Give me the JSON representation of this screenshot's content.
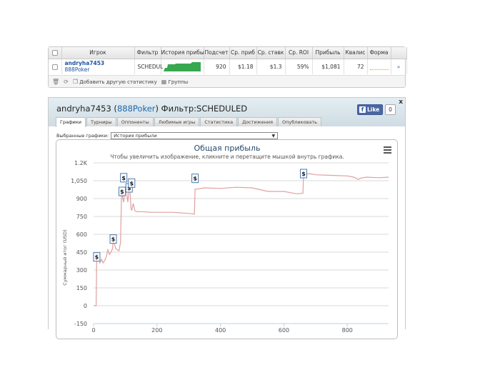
{
  "stats": {
    "headers": [
      "Игрок",
      "Фильтр",
      "История прибы",
      "Подсчет",
      "Ср. приб",
      "Ср. ставк",
      "Ср. ROI",
      "Прибыль",
      "Квалис",
      "Форма"
    ],
    "row": {
      "player": "andryha7453",
      "site": "888Poker",
      "filter": "SCHEDUL",
      "count": "920",
      "avg_profit": "$1.18",
      "avg_stake": "$1.3",
      "avg_roi": "59%",
      "profit": "$1,081",
      "qualis": "72",
      "link": "»"
    },
    "footer": {
      "add_stats": "Добавить другую статистику",
      "groups": "Группы"
    }
  },
  "panel": {
    "player": "andryha7453",
    "site": "888Poker",
    "filter_label": "Фильтр:",
    "filter_value": "SCHEDULED",
    "fb_like": "Like",
    "fb_count": "0",
    "close": "x",
    "tabs": [
      "Графики",
      "Турниры",
      "Оппоненты",
      "Любимые игры",
      "Статистика",
      "Достижения",
      "Опубликовать"
    ],
    "active_tab": 0,
    "select_label": "Выбранные графики:",
    "select_value": "История прибыли"
  },
  "colors": {
    "accent": "#1c55a6",
    "line": "#e0a0a0",
    "sparkline": "#2fa54a",
    "header_bg": "#d6e3ea",
    "fb": "#3b5998"
  },
  "chart_data": {
    "type": "line",
    "title": "Общая прибыль",
    "subtitle": "Чтобы увеличить изображение, кликните и перетащите мышкой внутрь графика.",
    "xlabel": "",
    "ylabel": "Суммарный итог (USD)",
    "xlim": [
      0,
      930
    ],
    "ylim": [
      -150,
      1200
    ],
    "x_ticks": [
      0,
      200,
      400,
      600,
      800
    ],
    "y_ticks": [
      -150,
      0,
      150,
      300,
      450,
      600,
      750,
      900,
      1050,
      1200
    ],
    "y_tick_labels": [
      "-150",
      "0",
      "150",
      "300",
      "450",
      "600",
      "750",
      "900",
      "1,050",
      "1.2K"
    ],
    "grid": true,
    "series": [
      {
        "name": "",
        "x": [
          0,
          8,
          10,
          12,
          15,
          18,
          20,
          25,
          30,
          35,
          40,
          45,
          50,
          55,
          60,
          62,
          65,
          68,
          70,
          75,
          80,
          85,
          88,
          90,
          92,
          95,
          100,
          105,
          108,
          110,
          112,
          115,
          118,
          120,
          125,
          130,
          135,
          150,
          180,
          200,
          250,
          300,
          318,
          320,
          325,
          350,
          400,
          450,
          500,
          550,
          600,
          640,
          660,
          662,
          665,
          680,
          700,
          750,
          800,
          820,
          835,
          840,
          860,
          900,
          930
        ],
        "y": [
          0,
          0,
          410,
          440,
          380,
          410,
          360,
          390,
          360,
          380,
          410,
          470,
          430,
          450,
          480,
          560,
          520,
          500,
          480,
          470,
          460,
          530,
          920,
          960,
          900,
          870,
          1000,
          930,
          870,
          930,
          990,
          950,
          820,
          800,
          860,
          800,
          790,
          790,
          785,
          785,
          785,
          775,
          770,
          980,
          980,
          990,
          985,
          995,
          990,
          960,
          960,
          940,
          945,
          1110,
          1100,
          1110,
          1100,
          1095,
          1090,
          1080,
          1060,
          1070,
          1080,
          1075,
          1080
        ]
      }
    ],
    "markers": [
      {
        "label": "$",
        "x": 10,
        "y": 410
      },
      {
        "label": "$",
        "x": 62,
        "y": 560
      },
      {
        "label": "$",
        "x": 90,
        "y": 960
      },
      {
        "label": "$",
        "x": 95,
        "y": 1075
      },
      {
        "label": "$",
        "x": 112,
        "y": 990
      },
      {
        "label": "$",
        "x": 120,
        "y": 1030
      },
      {
        "label": "$",
        "x": 320,
        "y": 1070
      },
      {
        "label": "$",
        "x": 662,
        "y": 1110
      }
    ]
  }
}
